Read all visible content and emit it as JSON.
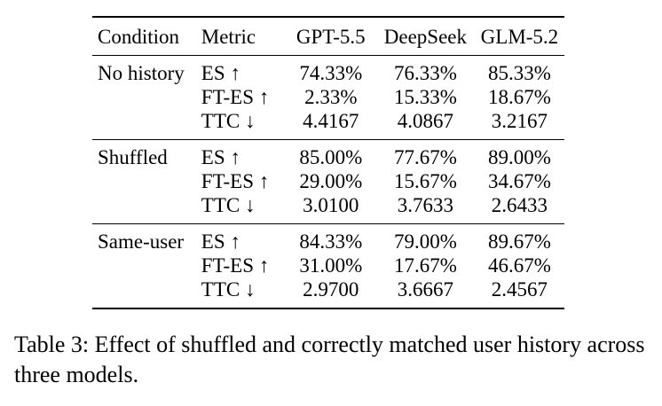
{
  "table": {
    "headers": [
      "Condition",
      "Metric",
      "GPT-5.5",
      "DeepSeek",
      "GLM-5.2"
    ],
    "groups": [
      {
        "condition": "No history",
        "rows": [
          {
            "metric": "ES ↑",
            "values": [
              "74.33%",
              "76.33%",
              "85.33%"
            ]
          },
          {
            "metric": "FT-ES ↑",
            "values": [
              "2.33%",
              "15.33%",
              "18.67%"
            ]
          },
          {
            "metric": "TTC ↓",
            "values": [
              "4.4167",
              "4.0867",
              "3.2167"
            ]
          }
        ]
      },
      {
        "condition": "Shuffled",
        "rows": [
          {
            "metric": "ES ↑",
            "values": [
              "85.00%",
              "77.67%",
              "89.00%"
            ]
          },
          {
            "metric": "FT-ES ↑",
            "values": [
              "29.00%",
              "15.67%",
              "34.67%"
            ]
          },
          {
            "metric": "TTC ↓",
            "values": [
              "3.0100",
              "3.7633",
              "2.6433"
            ]
          }
        ]
      },
      {
        "condition": "Same-user",
        "rows": [
          {
            "metric": "ES ↑",
            "values": [
              "84.33%",
              "79.00%",
              "89.67%"
            ]
          },
          {
            "metric": "FT-ES ↑",
            "values": [
              "31.00%",
              "17.67%",
              "46.67%"
            ]
          },
          {
            "metric": "TTC ↓",
            "values": [
              "2.9700",
              "3.6667",
              "2.4567"
            ]
          }
        ]
      }
    ]
  },
  "caption": "Table 3: Effect of shuffled and correctly matched user history across three models."
}
